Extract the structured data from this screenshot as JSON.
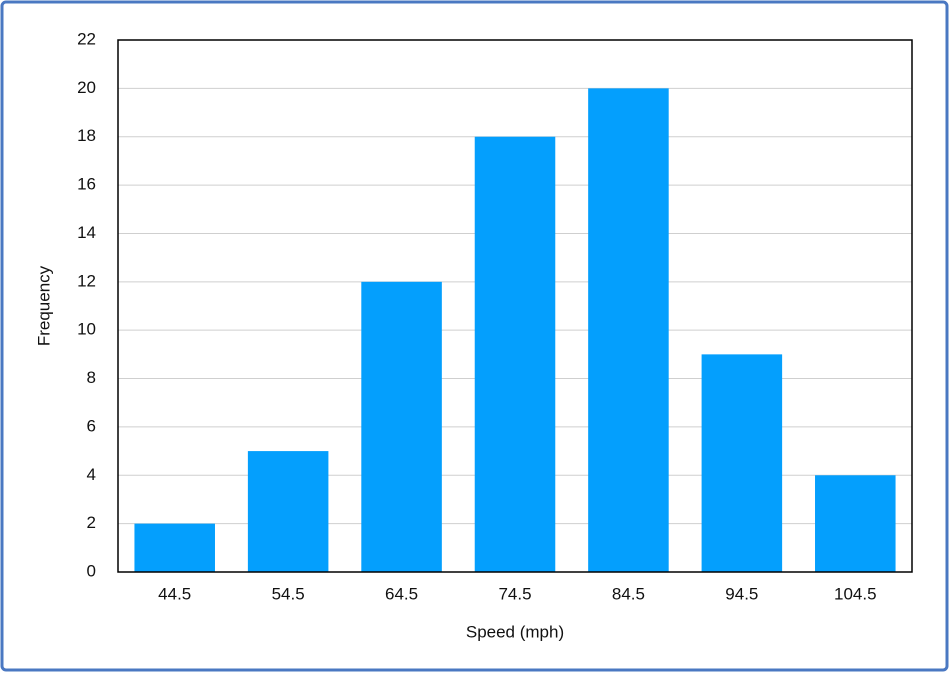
{
  "chart_data": {
    "type": "bar",
    "x_label": "Speed (mph)",
    "y_label": "Frequency",
    "categories": [
      "44.5",
      "54.5",
      "64.5",
      "74.5",
      "84.5",
      "94.5",
      "104.5"
    ],
    "values": [
      2,
      5,
      12,
      18,
      20,
      9,
      4
    ],
    "color": "#049ffd",
    "ylim": [
      0,
      22
    ],
    "yticks": [
      0,
      2,
      4,
      6,
      8,
      10,
      12,
      14,
      16,
      18,
      20,
      22
    ],
    "grid": true
  }
}
